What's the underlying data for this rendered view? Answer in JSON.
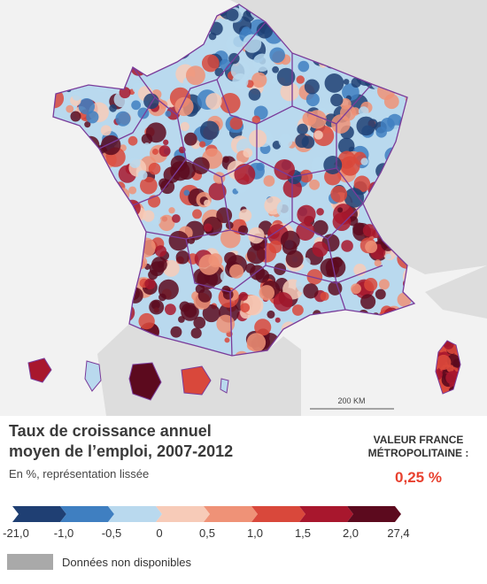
{
  "title": "Taux de croissance annuel moyen de l’emploi, 2007-2012",
  "subtitle": "En %, représentation lissée",
  "national_value": {
    "label": "VALEUR FRANCE MÉTROPOLITAINE :",
    "value": "0,25 %"
  },
  "scale_bar": "200 KM",
  "legend": {
    "breaks": [
      "-21,0",
      "-1,0",
      "-0,5",
      "0",
      "0,5",
      "1,0",
      "1,5",
      "2,0",
      "27,4"
    ],
    "colors": [
      "#1f3f73",
      "#3f7fc1",
      "#b9d9ee",
      "#f7cbb8",
      "#ef9277",
      "#d9483b",
      "#a8172d",
      "#5c0a1e"
    ],
    "no_data": {
      "label": "Données non disponibles",
      "color": "#a9a9a9"
    }
  }
}
